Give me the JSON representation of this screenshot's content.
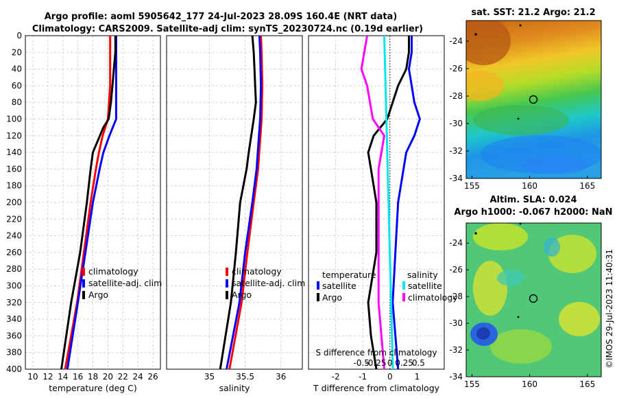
{
  "title": {
    "line1": "Argo profile: aoml 5905642_177 24-Jul-2023 28.09S 160.4E (NRT data)",
    "line2": "Climatology: CARS2009. Satellite-adj clim: synTS_20230724.nc (0.19d earlier)"
  },
  "colors": {
    "climatology": "#ff0000",
    "satellite": "#0000ff",
    "argo": "#000000",
    "sat_salinity": "#00e5ee",
    "clim_salinity_diff": "#ff00ff",
    "vertical": "#00e5ee"
  },
  "watermark": "©IMOS 29-Jul-2023 11:40:31",
  "chart_data": [
    {
      "type": "line",
      "name": "temperature",
      "xlabel": "temperature (deg C)",
      "ylim": [
        0,
        400
      ],
      "xlim": [
        9,
        27
      ],
      "xticks": [
        10,
        12,
        14,
        16,
        18,
        20,
        22,
        24,
        26
      ],
      "yticks": [
        0,
        20,
        40,
        60,
        80,
        100,
        120,
        140,
        160,
        180,
        200,
        220,
        240,
        260,
        280,
        300,
        320,
        340,
        360,
        380,
        400
      ],
      "legend": [
        "climatology",
        "satellite-adj. clim",
        "Argo"
      ],
      "series": [
        {
          "name": "climatology",
          "color": "#ff0000",
          "depth": [
            0,
            20,
            60,
            100,
            120,
            140,
            160,
            200,
            260,
            320,
            400
          ],
          "values": [
            20.3,
            20.3,
            20.3,
            20.0,
            19.3,
            18.8,
            18.4,
            17.7,
            16.8,
            15.9,
            14.3
          ]
        },
        {
          "name": "satellite-adj. clim",
          "color": "#0000ff",
          "depth": [
            0,
            20,
            40,
            60,
            80,
            100,
            120,
            140,
            160,
            200,
            260,
            320,
            400
          ],
          "values": [
            21.1,
            21.1,
            21.1,
            21.1,
            21.1,
            21.1,
            20.2,
            19.4,
            18.9,
            18.0,
            17.0,
            16.0,
            14.6
          ]
        },
        {
          "name": "Argo",
          "color": "#000000",
          "depth": [
            0,
            20,
            30,
            40,
            60,
            80,
            100,
            110,
            140,
            160,
            200,
            260,
            320,
            400
          ],
          "values": [
            21.0,
            21.0,
            20.9,
            20.8,
            20.6,
            20.4,
            20.1,
            19.4,
            18.0,
            17.7,
            17.2,
            16.3,
            15.1,
            13.8
          ]
        }
      ]
    },
    {
      "type": "line",
      "name": "salinity",
      "xlabel": "salinity",
      "ylim": [
        0,
        400
      ],
      "xlim": [
        34.4,
        36.3
      ],
      "xticks": [
        35,
        35.5,
        36
      ],
      "legend": [
        "climatology",
        "satellite-adj. clim",
        "Argo"
      ],
      "series": [
        {
          "name": "climatology",
          "color": "#ff0000",
          "depth": [
            0,
            20,
            60,
            100,
            160,
            200,
            260,
            320,
            400
          ],
          "values": [
            35.72,
            35.73,
            35.74,
            35.73,
            35.68,
            35.62,
            35.53,
            35.45,
            35.28
          ]
        },
        {
          "name": "satellite-adj. clim",
          "color": "#0000ff",
          "depth": [
            0,
            20,
            60,
            100,
            160,
            200,
            260,
            320,
            400
          ],
          "values": [
            35.7,
            35.71,
            35.72,
            35.71,
            35.66,
            35.6,
            35.5,
            35.42,
            35.24
          ]
        },
        {
          "name": "Argo",
          "color": "#000000",
          "depth": [
            0,
            20,
            40,
            60,
            80,
            100,
            140,
            160,
            200,
            260,
            320,
            400
          ],
          "values": [
            35.6,
            35.62,
            35.63,
            35.64,
            35.65,
            35.62,
            35.55,
            35.52,
            35.43,
            35.37,
            35.3,
            35.15
          ]
        }
      ]
    },
    {
      "type": "line",
      "name": "difference",
      "xlabel": "T difference from climatology",
      "top_axis_label": "S difference from climatology",
      "ylim": [
        0,
        400
      ],
      "xlim": [
        -3,
        2
      ],
      "xticks": [
        -2,
        -1,
        0,
        1
      ],
      "xtick_labels": [
        "-2",
        "-1",
        "0",
        "1"
      ],
      "top_ticks": [
        -0.5,
        -0.25,
        0,
        0.25,
        0.5
      ],
      "top_tick_labels": [
        "-0.5",
        "-0.25",
        "0",
        "0.25",
        "0.5"
      ],
      "legend_temperature_title": "temperature",
      "legend_salinity_title": "salinity",
      "legend_temperature": [
        "satellite",
        "Argo"
      ],
      "legend_salinity": [
        "satellite",
        "climatology"
      ],
      "series": [
        {
          "name": "T satellite",
          "color": "#0000ff",
          "depth": [
            0,
            20,
            40,
            60,
            80,
            100,
            120,
            140,
            160,
            200,
            260,
            320,
            400
          ],
          "values": [
            0.8,
            0.8,
            0.7,
            0.8,
            0.9,
            1.1,
            0.9,
            0.6,
            0.5,
            0.3,
            0.2,
            0.1,
            0.3
          ]
        },
        {
          "name": "T Argo",
          "color": "#000000",
          "depth": [
            0,
            20,
            40,
            60,
            80,
            100,
            120,
            140,
            160,
            200,
            260,
            320,
            360,
            400
          ],
          "values": [
            0.7,
            0.7,
            0.6,
            0.3,
            0.1,
            -0.1,
            -0.6,
            -0.8,
            -0.7,
            -0.5,
            -0.5,
            -0.8,
            -0.7,
            -0.5
          ]
        },
        {
          "name": "S satellite",
          "color": "#00e5ee",
          "depth": [
            0,
            400
          ],
          "values": [
            -0.1,
            0.05
          ]
        },
        {
          "name": "S climatology",
          "color": "#ff00ff",
          "depth": [
            0,
            40,
            60,
            100,
            120,
            160,
            200,
            260,
            320,
            400
          ],
          "values": [
            -0.4,
            -0.5,
            -0.4,
            -0.3,
            -0.1,
            -0.2,
            -0.2,
            -0.2,
            -0.2,
            -0.1
          ]
        }
      ]
    },
    {
      "type": "heatmap",
      "name": "sst_map",
      "title": "sat. SST: 21.2 Argo: 21.2",
      "xlim": [
        154.5,
        166.2
      ],
      "ylim": [
        -34,
        -22.5
      ],
      "xticks": [
        155,
        160,
        165
      ],
      "yticks": [
        -24,
        -26,
        -28,
        -30,
        -32,
        -34
      ],
      "marker": {
        "lon": 160.4,
        "lat": -28.09
      }
    },
    {
      "type": "heatmap",
      "name": "sla_map",
      "title_line1": "Altim. SLA: 0.024",
      "title_line2": "Argo h1000: -0.067 h2000: NaN",
      "xlim": [
        154.5,
        166.2
      ],
      "ylim": [
        -34,
        -22.5
      ],
      "xticks": [
        155,
        160,
        165
      ],
      "yticks": [
        -24,
        -26,
        -28,
        -30,
        -32,
        -34
      ],
      "marker": {
        "lon": 160.4,
        "lat": -28.09
      }
    }
  ]
}
